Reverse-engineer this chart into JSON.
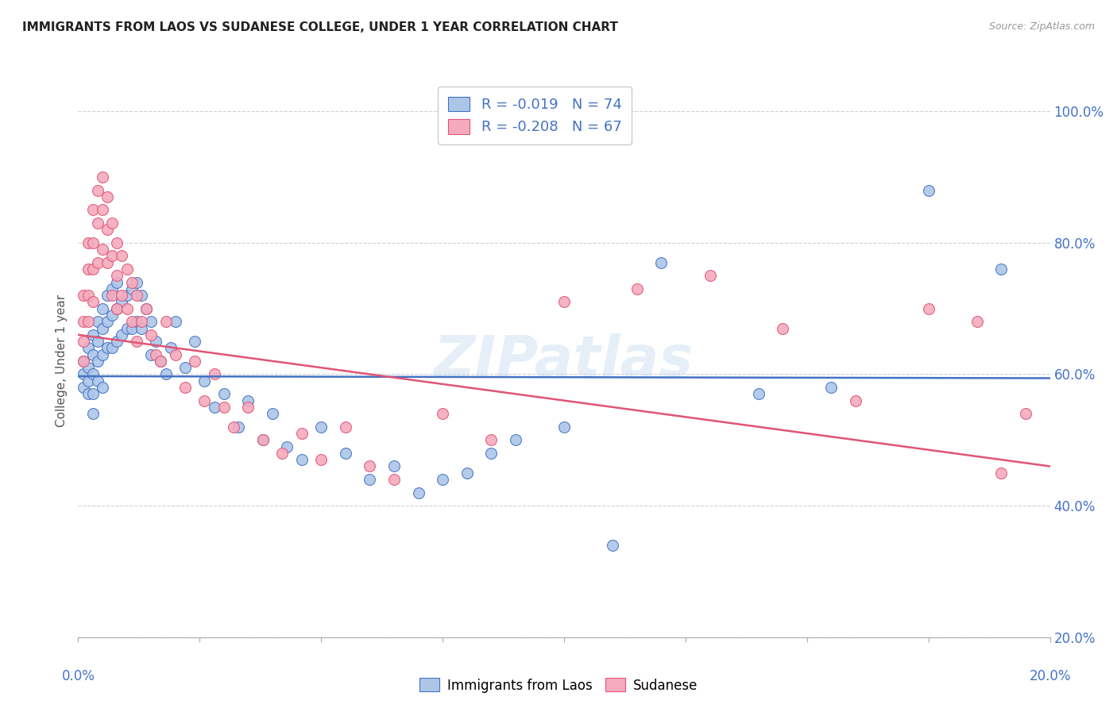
{
  "title": "IMMIGRANTS FROM LAOS VS SUDANESE COLLEGE, UNDER 1 YEAR CORRELATION CHART",
  "source_text": "Source: ZipAtlas.com",
  "ylabel": "College, Under 1 year",
  "legend_laos": "Immigrants from Laos",
  "legend_sudanese": "Sudanese",
  "r_laos": -0.019,
  "n_laos": 74,
  "r_sudanese": -0.208,
  "n_sudanese": 67,
  "laos_color": "#adc6e8",
  "sudanese_color": "#f4abbe",
  "laos_line_color": "#4472c4",
  "sudanese_line_color": "#e05575",
  "background_color": "#ffffff",
  "grid_color": "#d0d0d0",
  "axis_color": "#4472c4",
  "xmin": 0.0,
  "xmax": 0.2,
  "ymin": 0.2,
  "ymax": 1.04,
  "laos_x": [
    0.001,
    0.001,
    0.001,
    0.002,
    0.002,
    0.002,
    0.002,
    0.003,
    0.003,
    0.003,
    0.003,
    0.003,
    0.004,
    0.004,
    0.004,
    0.004,
    0.005,
    0.005,
    0.005,
    0.005,
    0.006,
    0.006,
    0.006,
    0.007,
    0.007,
    0.007,
    0.008,
    0.008,
    0.008,
    0.009,
    0.009,
    0.01,
    0.01,
    0.011,
    0.011,
    0.012,
    0.012,
    0.013,
    0.013,
    0.014,
    0.015,
    0.015,
    0.016,
    0.017,
    0.018,
    0.019,
    0.02,
    0.022,
    0.024,
    0.026,
    0.028,
    0.03,
    0.033,
    0.035,
    0.038,
    0.04,
    0.043,
    0.046,
    0.05,
    0.055,
    0.06,
    0.065,
    0.07,
    0.075,
    0.08,
    0.085,
    0.09,
    0.1,
    0.11,
    0.12,
    0.14,
    0.155,
    0.175,
    0.19
  ],
  "laos_y": [
    0.62,
    0.6,
    0.58,
    0.64,
    0.61,
    0.59,
    0.57,
    0.66,
    0.63,
    0.6,
    0.57,
    0.54,
    0.68,
    0.65,
    0.62,
    0.59,
    0.7,
    0.67,
    0.63,
    0.58,
    0.72,
    0.68,
    0.64,
    0.73,
    0.69,
    0.64,
    0.74,
    0.7,
    0.65,
    0.71,
    0.66,
    0.72,
    0.67,
    0.73,
    0.67,
    0.74,
    0.68,
    0.72,
    0.67,
    0.7,
    0.68,
    0.63,
    0.65,
    0.62,
    0.6,
    0.64,
    0.68,
    0.61,
    0.65,
    0.59,
    0.55,
    0.57,
    0.52,
    0.56,
    0.5,
    0.54,
    0.49,
    0.47,
    0.52,
    0.48,
    0.44,
    0.46,
    0.42,
    0.44,
    0.45,
    0.48,
    0.5,
    0.52,
    0.34,
    0.77,
    0.57,
    0.58,
    0.88,
    0.76
  ],
  "sudanese_x": [
    0.001,
    0.001,
    0.001,
    0.001,
    0.002,
    0.002,
    0.002,
    0.002,
    0.003,
    0.003,
    0.003,
    0.003,
    0.004,
    0.004,
    0.004,
    0.005,
    0.005,
    0.005,
    0.006,
    0.006,
    0.006,
    0.007,
    0.007,
    0.007,
    0.008,
    0.008,
    0.008,
    0.009,
    0.009,
    0.01,
    0.01,
    0.011,
    0.011,
    0.012,
    0.012,
    0.013,
    0.014,
    0.015,
    0.016,
    0.017,
    0.018,
    0.02,
    0.022,
    0.024,
    0.026,
    0.028,
    0.03,
    0.032,
    0.035,
    0.038,
    0.042,
    0.046,
    0.05,
    0.055,
    0.06,
    0.065,
    0.075,
    0.085,
    0.1,
    0.115,
    0.13,
    0.145,
    0.16,
    0.175,
    0.185,
    0.19,
    0.195
  ],
  "sudanese_y": [
    0.72,
    0.68,
    0.65,
    0.62,
    0.8,
    0.76,
    0.72,
    0.68,
    0.85,
    0.8,
    0.76,
    0.71,
    0.88,
    0.83,
    0.77,
    0.9,
    0.85,
    0.79,
    0.87,
    0.82,
    0.77,
    0.83,
    0.78,
    0.72,
    0.8,
    0.75,
    0.7,
    0.78,
    0.72,
    0.76,
    0.7,
    0.74,
    0.68,
    0.72,
    0.65,
    0.68,
    0.7,
    0.66,
    0.63,
    0.62,
    0.68,
    0.63,
    0.58,
    0.62,
    0.56,
    0.6,
    0.55,
    0.52,
    0.55,
    0.5,
    0.48,
    0.51,
    0.47,
    0.52,
    0.46,
    0.44,
    0.54,
    0.5,
    0.71,
    0.73,
    0.75,
    0.67,
    0.56,
    0.7,
    0.68,
    0.45,
    0.54
  ],
  "watermark": "ZIPatlas"
}
